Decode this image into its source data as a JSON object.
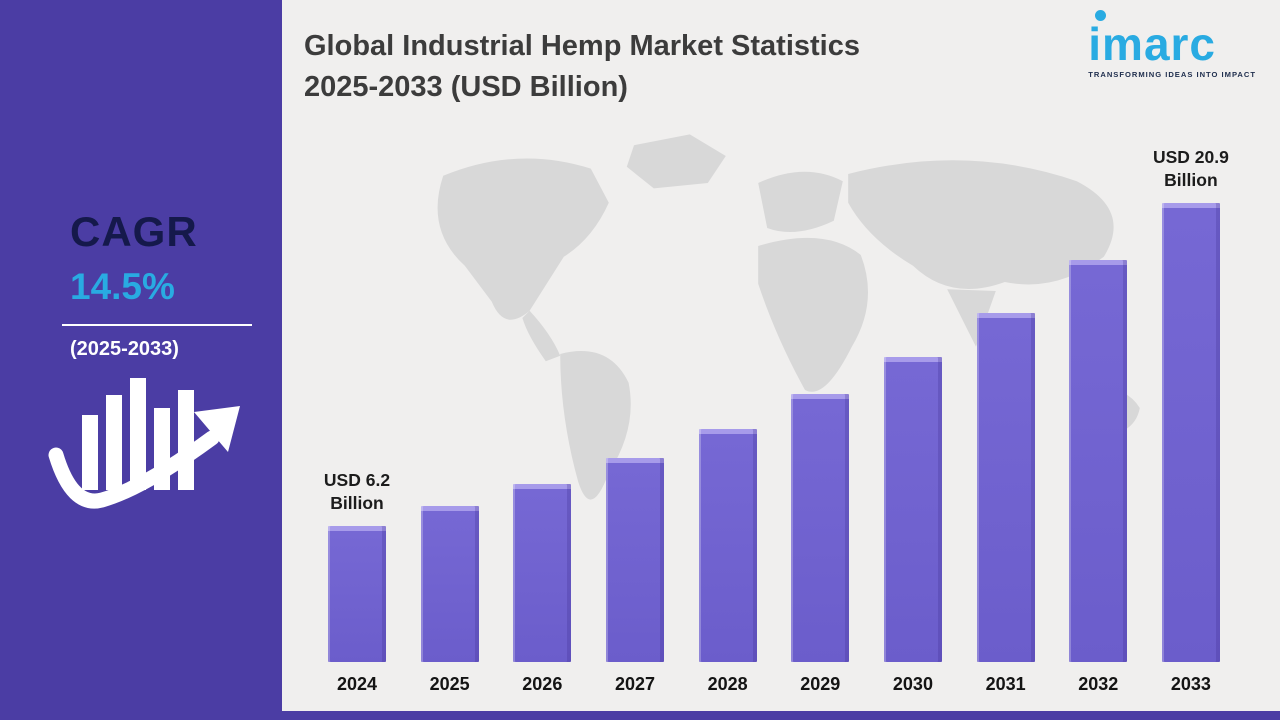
{
  "sidebar": {
    "cagr_label": "CAGR",
    "cagr_value": "14.5%",
    "cagr_period": "(2025-2033)",
    "accent_color": "#29abe2",
    "background_color": "#4b3da4"
  },
  "header": {
    "title_line1": "Global Industrial Hemp Market Statistics",
    "title_line2": "2025-2033 (USD Billion)"
  },
  "logo": {
    "brand": "imarc",
    "tagline": "TRANSFORMING IDEAS INTO IMPACT",
    "color": "#29abe2"
  },
  "chart_data": {
    "type": "bar",
    "title": "Global Industrial Hemp Market Statistics 2025-2033 (USD Billion)",
    "categories": [
      "2024",
      "2025",
      "2026",
      "2027",
      "2028",
      "2029",
      "2030",
      "2031",
      "2032",
      "2033"
    ],
    "values": [
      6.2,
      7.1,
      8.1,
      9.3,
      10.6,
      12.2,
      13.9,
      15.9,
      18.3,
      20.9
    ],
    "unit": "USD Billion",
    "first_bar_label": "USD 6.2 Billion",
    "last_bar_label": "USD 20.9 Billion",
    "bar_color": "#7668d4",
    "ylim": [
      0,
      21
    ],
    "grid": false,
    "legend": false,
    "xlabel": "",
    "ylabel": ""
  }
}
